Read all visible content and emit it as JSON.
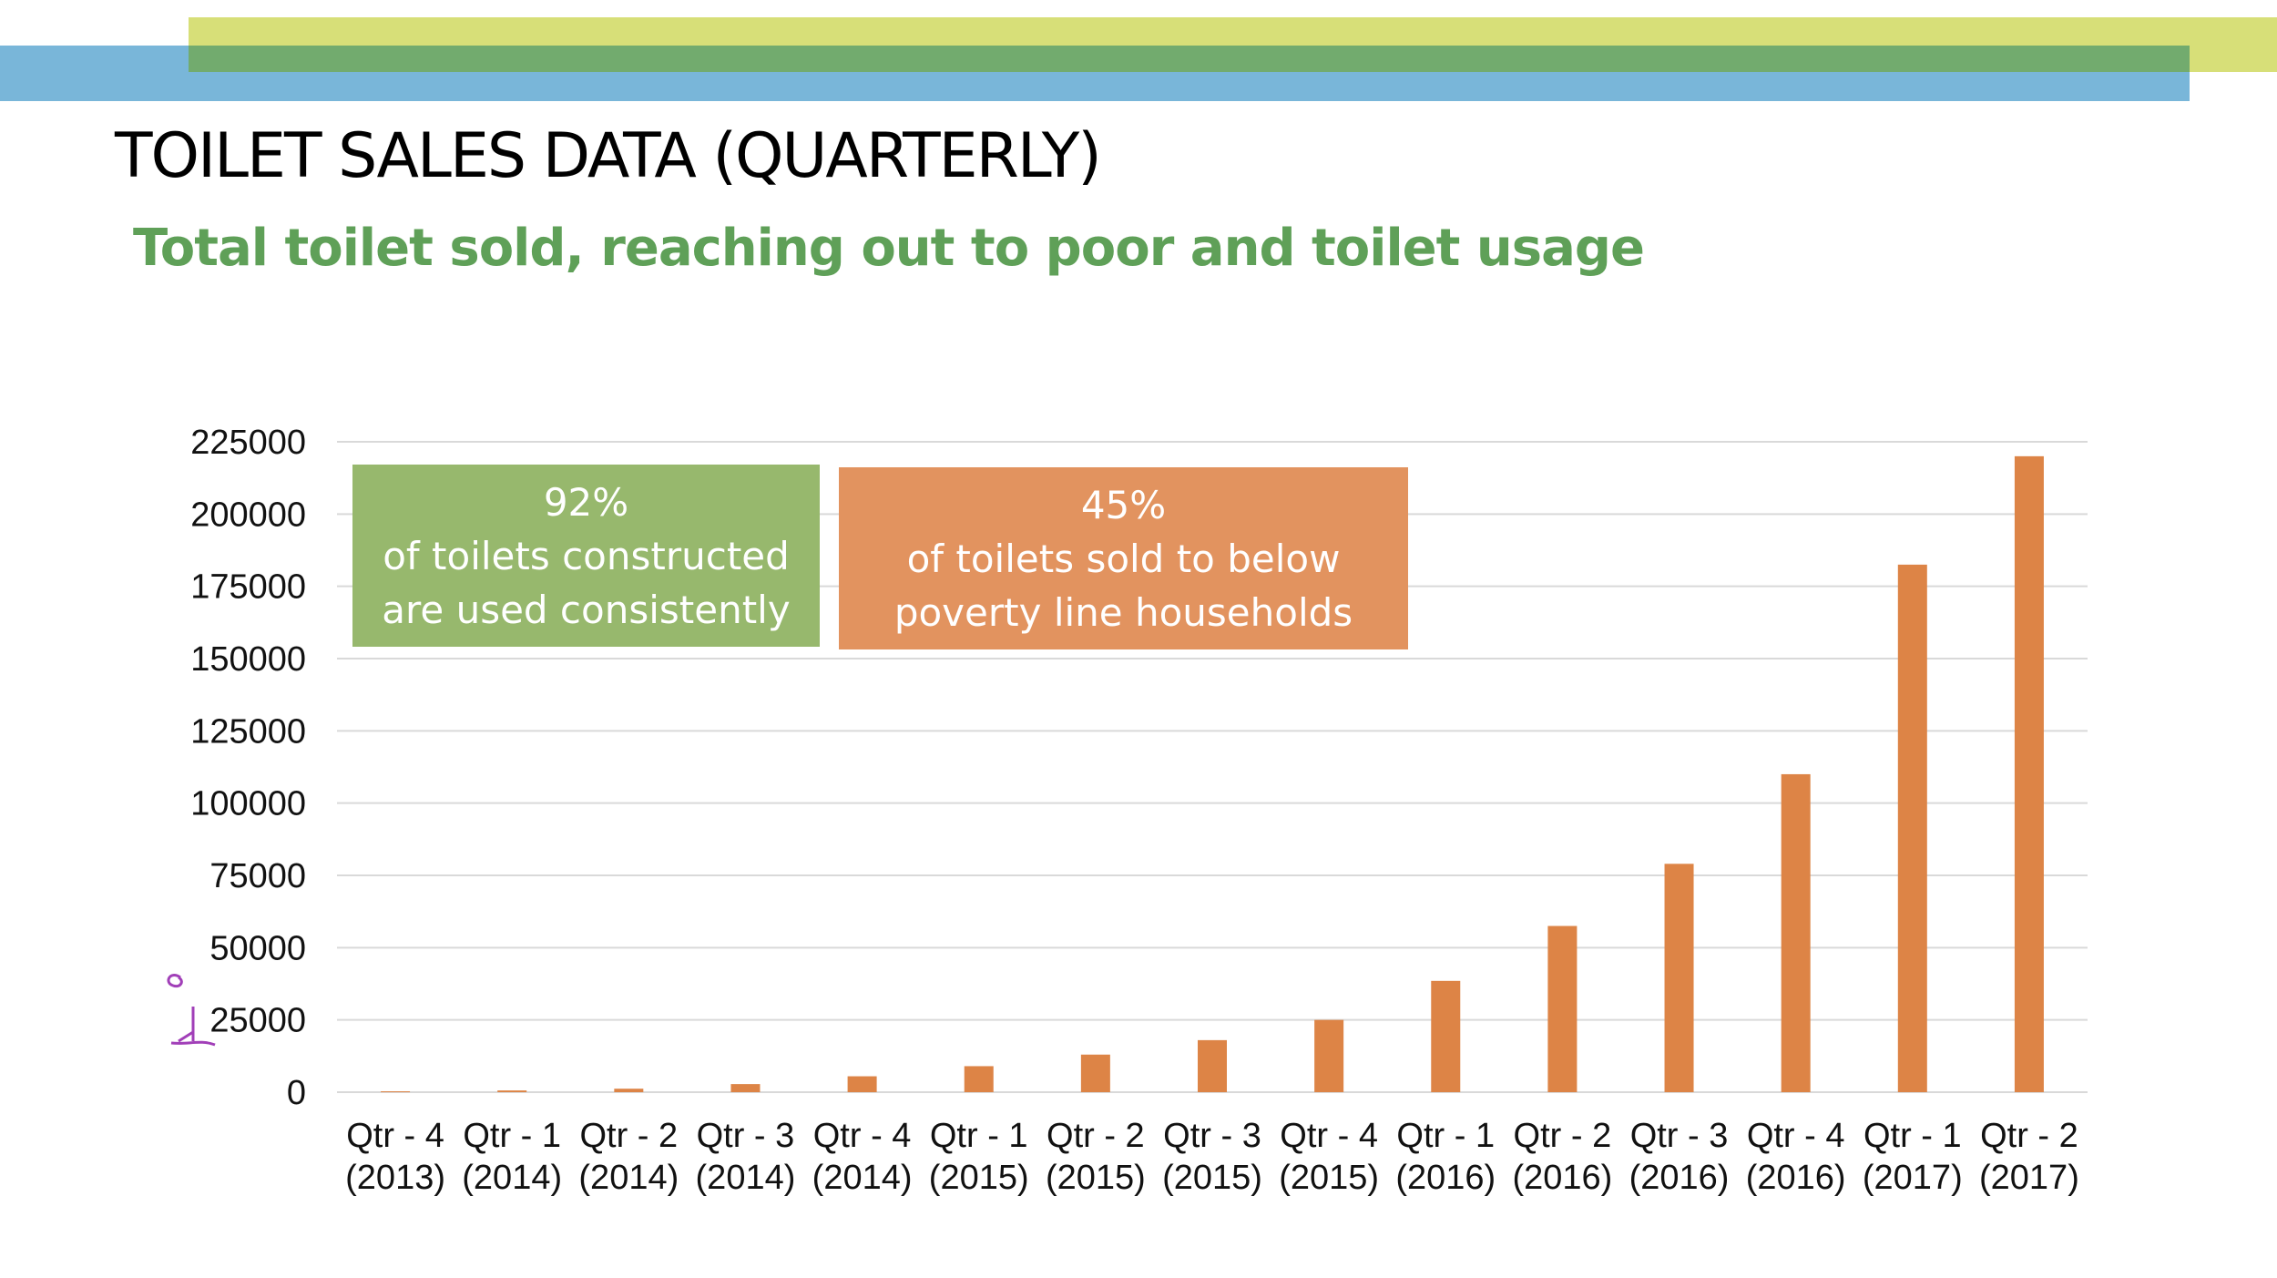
{
  "slide": {
    "title": "TOILET SALES DATA (QUARTERLY)",
    "subtitle": "Total toilet sold, reaching out to poor and toilet usage"
  },
  "annotations": {
    "usage": {
      "value": "92%",
      "line1": "of toilets constructed",
      "line2": "are used consistently"
    },
    "poverty": {
      "value": "45%",
      "line1": "of toilets sold to below",
      "line2": "poverty line households"
    }
  },
  "colors": {
    "bar": "#dd8446",
    "grid": "#d9d9d9",
    "band_green_light": "#d7df78",
    "band_blue": "#79b6d9",
    "band_green_dark": "#72ab6e",
    "subtitle": "#5fa058",
    "annotation_green": "#97b86d",
    "annotation_orange": "#e2935f"
  },
  "chart_data": {
    "type": "bar",
    "categories": [
      [
        "Qtr - 4",
        "(2013)"
      ],
      [
        "Qtr - 1",
        "(2014)"
      ],
      [
        "Qtr - 2",
        "(2014)"
      ],
      [
        "Qtr - 3",
        "(2014)"
      ],
      [
        "Qtr - 4",
        "(2014)"
      ],
      [
        "Qtr - 1",
        "(2015)"
      ],
      [
        "Qtr - 2",
        "(2015)"
      ],
      [
        "Qtr - 3",
        "(2015)"
      ],
      [
        "Qtr - 4",
        "(2015)"
      ],
      [
        "Qtr - 1",
        "(2016)"
      ],
      [
        "Qtr - 2",
        "(2016)"
      ],
      [
        "Qtr - 3",
        "(2016)"
      ],
      [
        "Qtr - 4",
        "(2016)"
      ],
      [
        "Qtr - 1",
        "(2017)"
      ],
      [
        "Qtr - 2",
        "(2017)"
      ]
    ],
    "values": [
      300,
      600,
      1200,
      2800,
      5500,
      9000,
      13000,
      18000,
      25000,
      38500,
      57500,
      79000,
      110000,
      182500,
      220000
    ],
    "yticks": [
      "0",
      "25000",
      "50000",
      "75000",
      "100000",
      "125000",
      "150000",
      "175000",
      "200000",
      "225000"
    ],
    "ylim": [
      0,
      225000
    ],
    "grid": true,
    "legend": "none"
  }
}
